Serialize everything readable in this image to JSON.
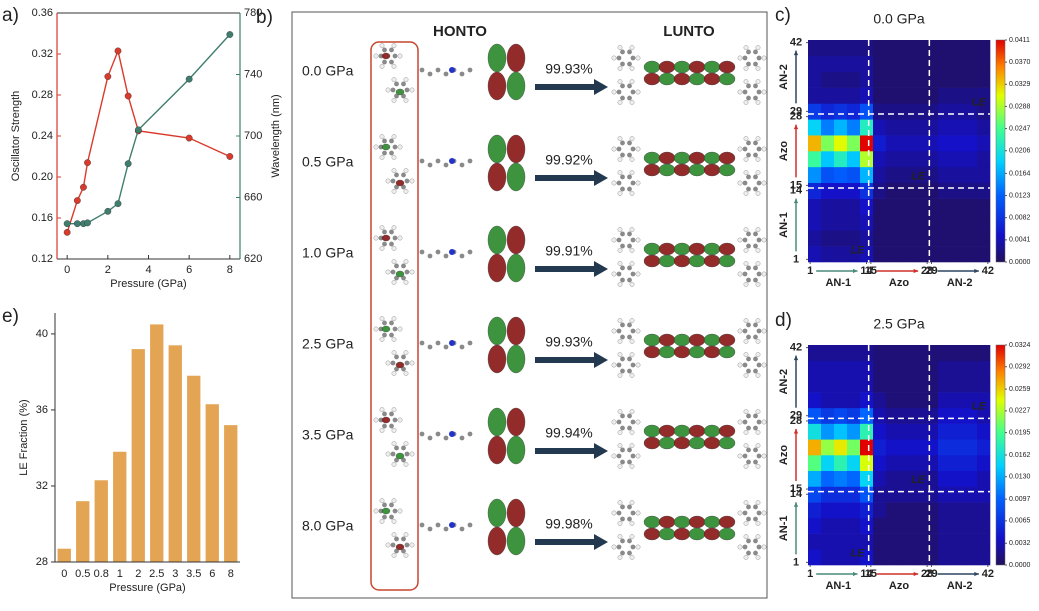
{
  "chart_data": [
    {
      "type": "line",
      "panel_label": "a)",
      "xlabel": "Pressure (GPa)",
      "ylabel": "Oscillator Strength",
      "y2label": "Wavelength (nm)",
      "x": [
        0,
        0.5,
        0.8,
        1,
        2,
        2.5,
        3,
        3.5,
        6,
        8
      ],
      "series": [
        {
          "name": "Oscillator Strength",
          "color": "#d93a2b",
          "axis": "y",
          "values": [
            0.146,
            0.177,
            0.19,
            0.214,
            0.298,
            0.323,
            0.279,
            0.245,
            0.238,
            0.22
          ]
        },
        {
          "name": "Wavelength (nm)",
          "color": "#3f7d6e",
          "axis": "y2",
          "values": [
            643,
            643,
            643,
            643.5,
            651,
            656,
            682,
            704,
            737,
            766
          ]
        }
      ],
      "xlim": [
        -0.5,
        8.5
      ],
      "xticks": [
        0,
        2,
        4,
        6,
        8
      ],
      "ylim": [
        0.12,
        0.36
      ],
      "yticks": [
        0.12,
        0.16,
        {
          "value": 0.2,
          "label": "0.20"
        },
        0.24,
        0.28,
        0.32,
        0.36
      ],
      "y2lim": [
        620,
        780
      ],
      "y2ticks": [
        620,
        660,
        700,
        740,
        780
      ]
    },
    {
      "type": "heatmap",
      "panel_label": "c)",
      "title": "0.0 GPa",
      "xlim": [
        0.5,
        42.5
      ],
      "ylim": [
        0.5,
        42.5
      ],
      "xticks": [
        1,
        14,
        15,
        28,
        29,
        42
      ],
      "yticks": [
        1,
        14,
        15,
        28,
        29,
        42
      ],
      "groups": [
        {
          "name": "AN-1",
          "range": [
            1,
            14
          ],
          "color": "#4a8a7a"
        },
        {
          "name": "Azo",
          "range": [
            15,
            28
          ],
          "color": "#d0302a"
        },
        {
          "name": "AN-2",
          "range": [
            29,
            42
          ],
          "color": "#2c4560"
        }
      ],
      "annotations": [
        "LE",
        "LE",
        "LE"
      ],
      "zlim": [
        0,
        0.0411
      ],
      "zticks": [
        {
          "value": 0,
          "label": "0.0000"
        },
        0.0041,
        0.0082,
        0.0123,
        0.0164,
        0.0206,
        0.0247,
        0.0288,
        0.0329,
        {
          "value": 0.037,
          "label": "0.0370"
        },
        0.0411
      ],
      "z": [
        [
          0.004,
          0.003,
          0.003,
          0.003,
          0.004,
          0.001,
          0.001,
          0.001,
          0.001,
          0.001,
          0.001,
          0.001,
          0.001,
          0.001
        ],
        [
          0.003,
          0.002,
          0.002,
          0.002,
          0.003,
          0.001,
          0.001,
          0.001,
          0.001,
          0.001,
          0.001,
          0.001,
          0.001,
          0.001
        ],
        [
          0.004,
          0.003,
          0.003,
          0.003,
          0.004,
          0.001,
          0.001,
          0.001,
          0.001,
          0.001,
          0.001,
          0.001,
          0.001,
          0.001
        ],
        [
          0.004,
          0.003,
          0.003,
          0.003,
          0.005,
          0.001,
          0.001,
          0.001,
          0.001,
          0.001,
          0.001,
          0.001,
          0.001,
          0.001
        ],
        [
          0.007,
          0.005,
          0.005,
          0.005,
          0.008,
          0.002,
          0.001,
          0.001,
          0.001,
          0.001,
          0.002,
          0.002,
          0.002,
          0.002
        ],
        [
          0.015,
          0.011,
          0.012,
          0.011,
          0.017,
          0.003,
          0.002,
          0.002,
          0.002,
          0.002,
          0.003,
          0.003,
          0.003,
          0.003
        ],
        [
          0.024,
          0.018,
          0.022,
          0.018,
          0.029,
          0.004,
          0.003,
          0.003,
          0.003,
          0.003,
          0.004,
          0.004,
          0.004,
          0.003
        ],
        [
          0.034,
          0.027,
          0.031,
          0.027,
          0.041,
          0.006,
          0.004,
          0.004,
          0.004,
          0.004,
          0.005,
          0.005,
          0.005,
          0.004
        ],
        [
          0.019,
          0.014,
          0.017,
          0.014,
          0.022,
          0.004,
          0.003,
          0.003,
          0.003,
          0.003,
          0.004,
          0.004,
          0.004,
          0.003
        ],
        [
          0.009,
          0.007,
          0.008,
          0.007,
          0.011,
          0.002,
          0.002,
          0.002,
          0.002,
          0.002,
          0.003,
          0.003,
          0.003,
          0.002
        ],
        [
          0.003,
          0.003,
          0.003,
          0.003,
          0.004,
          0.001,
          0.001,
          0.001,
          0.001,
          0.001,
          0.002,
          0.002,
          0.002,
          0.002
        ],
        [
          0.003,
          0.002,
          0.002,
          0.002,
          0.003,
          0.001,
          0.001,
          0.001,
          0.001,
          0.001,
          0.001,
          0.001,
          0.001,
          0.001
        ],
        [
          0.003,
          0.003,
          0.003,
          0.003,
          0.003,
          0.001,
          0.001,
          0.001,
          0.001,
          0.001,
          0.001,
          0.001,
          0.001,
          0.001
        ],
        [
          0.002,
          0.002,
          0.002,
          0.002,
          0.002,
          0.001,
          0.001,
          0.001,
          0.001,
          0.001,
          0.001,
          0.001,
          0.001,
          0.001
        ]
      ]
    },
    {
      "type": "heatmap",
      "panel_label": "d)",
      "title": "2.5 GPa",
      "xlim": [
        0.5,
        42.5
      ],
      "ylim": [
        0.5,
        42.5
      ],
      "xticks": [
        1,
        14,
        15,
        28,
        29,
        42
      ],
      "yticks": [
        1,
        14,
        15,
        28,
        29,
        42
      ],
      "groups": [
        {
          "name": "AN-1",
          "range": [
            1,
            14
          ],
          "color": "#4a8a7a"
        },
        {
          "name": "Azo",
          "range": [
            15,
            28
          ],
          "color": "#d0302a"
        },
        {
          "name": "AN-2",
          "range": [
            29,
            42
          ],
          "color": "#2c4560"
        }
      ],
      "annotations": [
        "LE",
        "LE",
        "LE"
      ],
      "zlim": [
        0,
        0.0324
      ],
      "zticks": [
        {
          "value": 0,
          "label": "0.0000"
        },
        0.0032,
        0.0065,
        0.0097,
        {
          "value": 0.013,
          "label": "0.0130"
        },
        0.0162,
        0.0195,
        0.0227,
        0.0259,
        0.0292,
        0.0324
      ],
      "z": [
        [
          0.004,
          0.003,
          0.003,
          0.003,
          0.004,
          0.001,
          0.001,
          0.001,
          0.001,
          0.001,
          0.002,
          0.002,
          0.002,
          0.002
        ],
        [
          0.003,
          0.003,
          0.003,
          0.003,
          0.003,
          0.001,
          0.001,
          0.001,
          0.001,
          0.001,
          0.002,
          0.002,
          0.002,
          0.002
        ],
        [
          0.004,
          0.003,
          0.003,
          0.003,
          0.004,
          0.001,
          0.001,
          0.001,
          0.001,
          0.001,
          0.002,
          0.002,
          0.002,
          0.002
        ],
        [
          0.005,
          0.004,
          0.004,
          0.004,
          0.005,
          0.002,
          0.001,
          0.001,
          0.001,
          0.001,
          0.002,
          0.002,
          0.002,
          0.002
        ],
        [
          0.008,
          0.006,
          0.006,
          0.006,
          0.009,
          0.002,
          0.002,
          0.002,
          0.002,
          0.002,
          0.003,
          0.003,
          0.003,
          0.003
        ],
        [
          0.013,
          0.01,
          0.011,
          0.01,
          0.015,
          0.003,
          0.002,
          0.002,
          0.002,
          0.002,
          0.004,
          0.004,
          0.004,
          0.003
        ],
        [
          0.02,
          0.015,
          0.018,
          0.015,
          0.024,
          0.004,
          0.003,
          0.003,
          0.003,
          0.003,
          0.005,
          0.005,
          0.005,
          0.004
        ],
        [
          0.027,
          0.022,
          0.025,
          0.021,
          0.0324,
          0.005,
          0.004,
          0.004,
          0.004,
          0.004,
          0.006,
          0.006,
          0.006,
          0.005
        ],
        [
          0.016,
          0.012,
          0.014,
          0.012,
          0.018,
          0.004,
          0.003,
          0.003,
          0.003,
          0.003,
          0.005,
          0.005,
          0.005,
          0.004
        ],
        [
          0.009,
          0.007,
          0.008,
          0.007,
          0.01,
          0.003,
          0.002,
          0.002,
          0.002,
          0.002,
          0.004,
          0.004,
          0.004,
          0.003
        ],
        [
          0.004,
          0.003,
          0.003,
          0.003,
          0.004,
          0.002,
          0.001,
          0.001,
          0.001,
          0.001,
          0.003,
          0.003,
          0.003,
          0.003
        ],
        [
          0.003,
          0.003,
          0.003,
          0.003,
          0.003,
          0.001,
          0.001,
          0.001,
          0.001,
          0.001,
          0.002,
          0.002,
          0.002,
          0.002
        ],
        [
          0.003,
          0.003,
          0.003,
          0.003,
          0.003,
          0.001,
          0.001,
          0.001,
          0.001,
          0.001,
          0.002,
          0.002,
          0.002,
          0.002
        ],
        [
          0.002,
          0.002,
          0.002,
          0.002,
          0.002,
          0.001,
          0.001,
          0.001,
          0.001,
          0.001,
          0.001,
          0.001,
          0.001,
          0.001
        ]
      ]
    },
    {
      "type": "bar",
      "panel_label": "e)",
      "xlabel": "Pressure (GPa)",
      "ylabel": "LE Fraction (%)",
      "color": "#e3a553",
      "categories": [
        "0",
        "0.5",
        "0.8",
        "1",
        "2",
        "2.5",
        "3",
        "3.5",
        "6",
        "8"
      ],
      "values": [
        28.7,
        31.2,
        32.3,
        33.8,
        39.2,
        40.5,
        39.4,
        37.8,
        36.3,
        35.2
      ],
      "ylim": [
        28,
        41.1
      ],
      "yticks": [
        28,
        32,
        36,
        40
      ]
    }
  ],
  "panel_b": {
    "panel_label": "b)",
    "columns": [
      "HONTO",
      "LUNTO"
    ],
    "rows": [
      {
        "pressure": "0.0 GPa",
        "contribution": "99.93%"
      },
      {
        "pressure": "0.5 GPa",
        "contribution": "99.92%"
      },
      {
        "pressure": "1.0 GPa",
        "contribution": "99.91%"
      },
      {
        "pressure": "2.5 GPa",
        "contribution": "99.93%"
      },
      {
        "pressure": "3.5 GPa",
        "contribution": "99.94%"
      },
      {
        "pressure": "8.0 GPa",
        "contribution": "99.98%"
      }
    ]
  }
}
